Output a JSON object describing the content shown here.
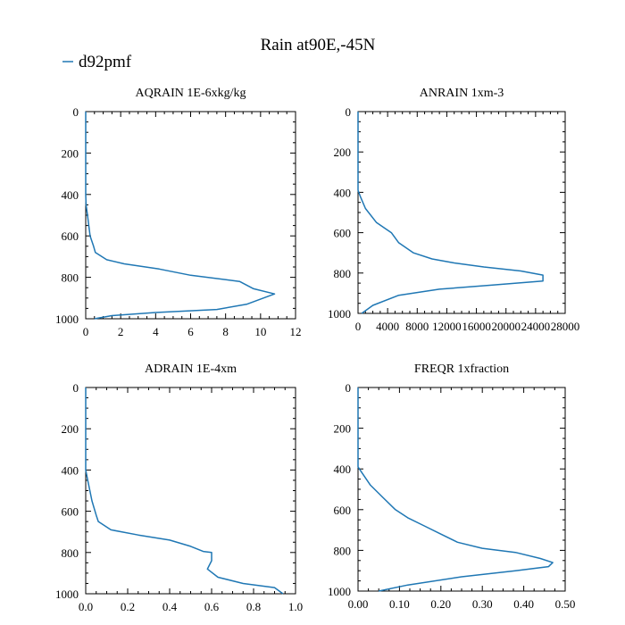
{
  "title": "Rain at90E,-45N",
  "legend": {
    "label": "d92pmf",
    "color": "#1f77b4"
  },
  "series_color": "#1f77b4",
  "chart_data": [
    {
      "type": "line",
      "title": "AQRAIN  1E-6xkg/kg",
      "xlim": [
        0,
        12
      ],
      "ylim": [
        0,
        1000
      ],
      "y_inverted": true,
      "xticks": [
        0,
        2,
        4,
        6,
        8,
        10,
        12
      ],
      "xtick_labels": [
        "0",
        "2",
        "4",
        "6",
        "8",
        "10",
        "12"
      ],
      "yticks": [
        0,
        200,
        400,
        600,
        800,
        1000
      ],
      "ytick_labels": [
        "0",
        "200",
        "400",
        "600",
        "800",
        "1000"
      ],
      "series": [
        {
          "name": "d92pmf",
          "x": [
            0,
            0,
            0.02,
            0.1,
            0.25,
            0.45,
            0.55,
            1.2,
            2.2,
            4.2,
            6.0,
            8.8,
            9.6,
            10.8,
            9.2,
            7.5,
            4.0,
            1.5,
            0.5
          ],
          "y": [
            0,
            400,
            450,
            500,
            600,
            650,
            680,
            715,
            735,
            760,
            790,
            820,
            855,
            880,
            930,
            955,
            970,
            985,
            1000
          ]
        }
      ]
    },
    {
      "type": "line",
      "title": "ANRAIN  1xm-3",
      "xlim": [
        0,
        28000
      ],
      "ylim": [
        0,
        1000
      ],
      "y_inverted": true,
      "xticks": [
        0,
        4000,
        8000,
        12000,
        16000,
        20000,
        24000,
        28000
      ],
      "xtick_labels": [
        "0",
        "4000",
        "8000",
        "12000",
        "16000",
        "20000",
        "24000",
        "28000"
      ],
      "yticks": [
        0,
        200,
        400,
        600,
        800,
        1000
      ],
      "ytick_labels": [
        "0",
        "200",
        "400",
        "600",
        "800",
        "1000"
      ],
      "series": [
        {
          "name": "d92pmf",
          "x": [
            0,
            0,
            300,
            1000,
            2500,
            4500,
            5500,
            7500,
            10000,
            13000,
            17000,
            22000,
            25000,
            25000,
            18000,
            11000,
            5500,
            2000,
            500
          ],
          "y": [
            0,
            390,
            420,
            480,
            550,
            600,
            650,
            700,
            730,
            750,
            770,
            790,
            810,
            840,
            860,
            880,
            910,
            960,
            1000
          ]
        }
      ]
    },
    {
      "type": "line",
      "title": "ADRAIN  1E-4xm",
      "xlim": [
        0,
        1.0
      ],
      "ylim": [
        0,
        1000
      ],
      "y_inverted": true,
      "xticks": [
        0,
        0.2,
        0.4,
        0.6,
        0.8,
        1.0
      ],
      "xtick_labels": [
        "0.0",
        "0.2",
        "0.4",
        "0.6",
        "0.8",
        "1.0"
      ],
      "yticks": [
        0,
        200,
        400,
        600,
        800,
        1000
      ],
      "ytick_labels": [
        "0",
        "200",
        "400",
        "600",
        "800",
        "1000"
      ],
      "series": [
        {
          "name": "d92pmf",
          "x": [
            0,
            0,
            0.01,
            0.03,
            0.05,
            0.06,
            0.12,
            0.25,
            0.4,
            0.5,
            0.56,
            0.6,
            0.6,
            0.58,
            0.63,
            0.75,
            0.9,
            0.94
          ],
          "y": [
            0,
            400,
            450,
            550,
            620,
            650,
            690,
            715,
            740,
            770,
            795,
            800,
            840,
            880,
            920,
            950,
            970,
            1000
          ]
        }
      ]
    },
    {
      "type": "line",
      "title": "FREQR  1xfraction",
      "xlim": [
        0,
        0.5
      ],
      "ylim": [
        0,
        1000
      ],
      "y_inverted": true,
      "xticks": [
        0,
        0.1,
        0.2,
        0.3,
        0.4,
        0.5
      ],
      "xtick_labels": [
        "0.00",
        "0.10",
        "0.20",
        "0.30",
        "0.40",
        "0.50"
      ],
      "yticks": [
        0,
        200,
        400,
        600,
        800,
        1000
      ],
      "ytick_labels": [
        "0",
        "200",
        "400",
        "600",
        "800",
        "1000"
      ],
      "series": [
        {
          "name": "d92pmf",
          "x": [
            0,
            0,
            0.01,
            0.03,
            0.06,
            0.09,
            0.12,
            0.16,
            0.2,
            0.24,
            0.3,
            0.38,
            0.44,
            0.47,
            0.46,
            0.38,
            0.25,
            0.12,
            0.05
          ],
          "y": [
            0,
            390,
            420,
            480,
            540,
            600,
            640,
            680,
            720,
            760,
            790,
            810,
            840,
            860,
            880,
            900,
            930,
            970,
            1000
          ]
        }
      ]
    }
  ]
}
